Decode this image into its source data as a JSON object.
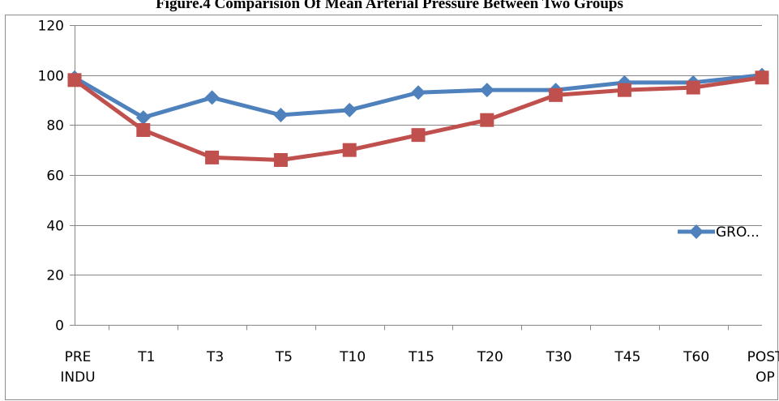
{
  "chart_data": {
    "type": "line",
    "title": "Figure.4 Comparision Of Mean Arterial Pressure Between Two Groups",
    "categories": [
      [
        "PRE",
        "INDU"
      ],
      [
        "T1"
      ],
      [
        "T3"
      ],
      [
        "T5"
      ],
      [
        "T10"
      ],
      [
        "T15"
      ],
      [
        "T20"
      ],
      [
        "T30"
      ],
      [
        "T45"
      ],
      [
        "T60"
      ],
      [
        "POST",
        "OP"
      ]
    ],
    "ylim": [
      0,
      120
    ],
    "yticks": [
      0,
      20,
      40,
      60,
      80,
      100,
      120
    ],
    "grid": "horizontal",
    "legend": {
      "placement": "right",
      "entries": [
        "GRO..."
      ]
    },
    "series": [
      {
        "name": "GRO...",
        "color": "#4F81BD",
        "marker": "diamond",
        "values": [
          99,
          83,
          91,
          84,
          86,
          93,
          94,
          94,
          97,
          97,
          100
        ]
      },
      {
        "color": "#C0504D",
        "marker": "square",
        "values": [
          98,
          78,
          67,
          66,
          70,
          76,
          82,
          92,
          94,
          95,
          99
        ]
      }
    ]
  }
}
